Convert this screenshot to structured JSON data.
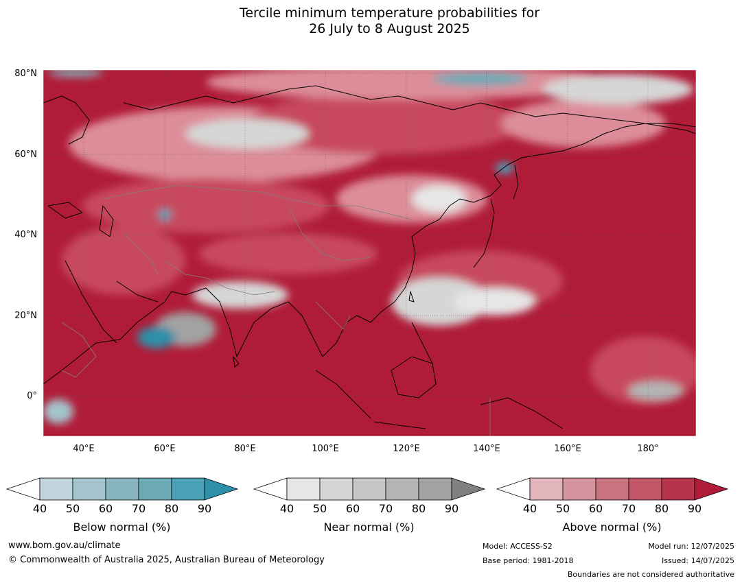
{
  "title": {
    "line1": "Tercile minimum temperature probabilities for",
    "line2": "26 July to 8 August 2025"
  },
  "map": {
    "lat_labels": [
      "80°N",
      "60°N",
      "40°N",
      "20°N",
      "0°"
    ],
    "lon_labels": [
      "40°E",
      "60°E",
      "80°E",
      "100°E",
      "120°E",
      "140°E",
      "160°E",
      "180°"
    ],
    "colors": {
      "above_strong": "#b01c38",
      "above_mid": "#c84a5e",
      "above_light": "#dc8d99",
      "near": "#d6d6d6",
      "below": "#4aa0b5",
      "coast": "#000000",
      "border": "#808080"
    }
  },
  "colorbars": [
    {
      "label": "Below normal (%)",
      "ticks": [
        "40",
        "50",
        "60",
        "70",
        "80",
        "90"
      ],
      "colors": [
        "#bfd4db",
        "#a3c4cc",
        "#87b4bf",
        "#6ca9b6",
        "#4aa0b5",
        "#2e8fa8"
      ]
    },
    {
      "label": "Near normal (%)",
      "ticks": [
        "40",
        "50",
        "60",
        "70",
        "80",
        "90"
      ],
      "colors": [
        "#e6e6e6",
        "#d6d6d6",
        "#c6c6c6",
        "#b4b4b4",
        "#a2a2a2",
        "#808080"
      ]
    },
    {
      "label": "Above normal (%)",
      "ticks": [
        "40",
        "50",
        "60",
        "70",
        "80",
        "90"
      ],
      "colors": [
        "#e1b6bd",
        "#d4959e",
        "#c97380",
        "#c05666",
        "#b8344b",
        "#b01c38"
      ]
    }
  ],
  "footer": {
    "website": "www.bom.gov.au/climate",
    "copyright": "© Commonwealth of Australia 2025, Australian Bureau of Meteorology",
    "model": "Model: ACCESS-S2",
    "base_period": "Base period: 1981-2018",
    "model_run": "Model run: 12/07/2025",
    "issued": "Issued: 14/07/2025",
    "boundaries": "Boundaries are not considered authoritative"
  }
}
